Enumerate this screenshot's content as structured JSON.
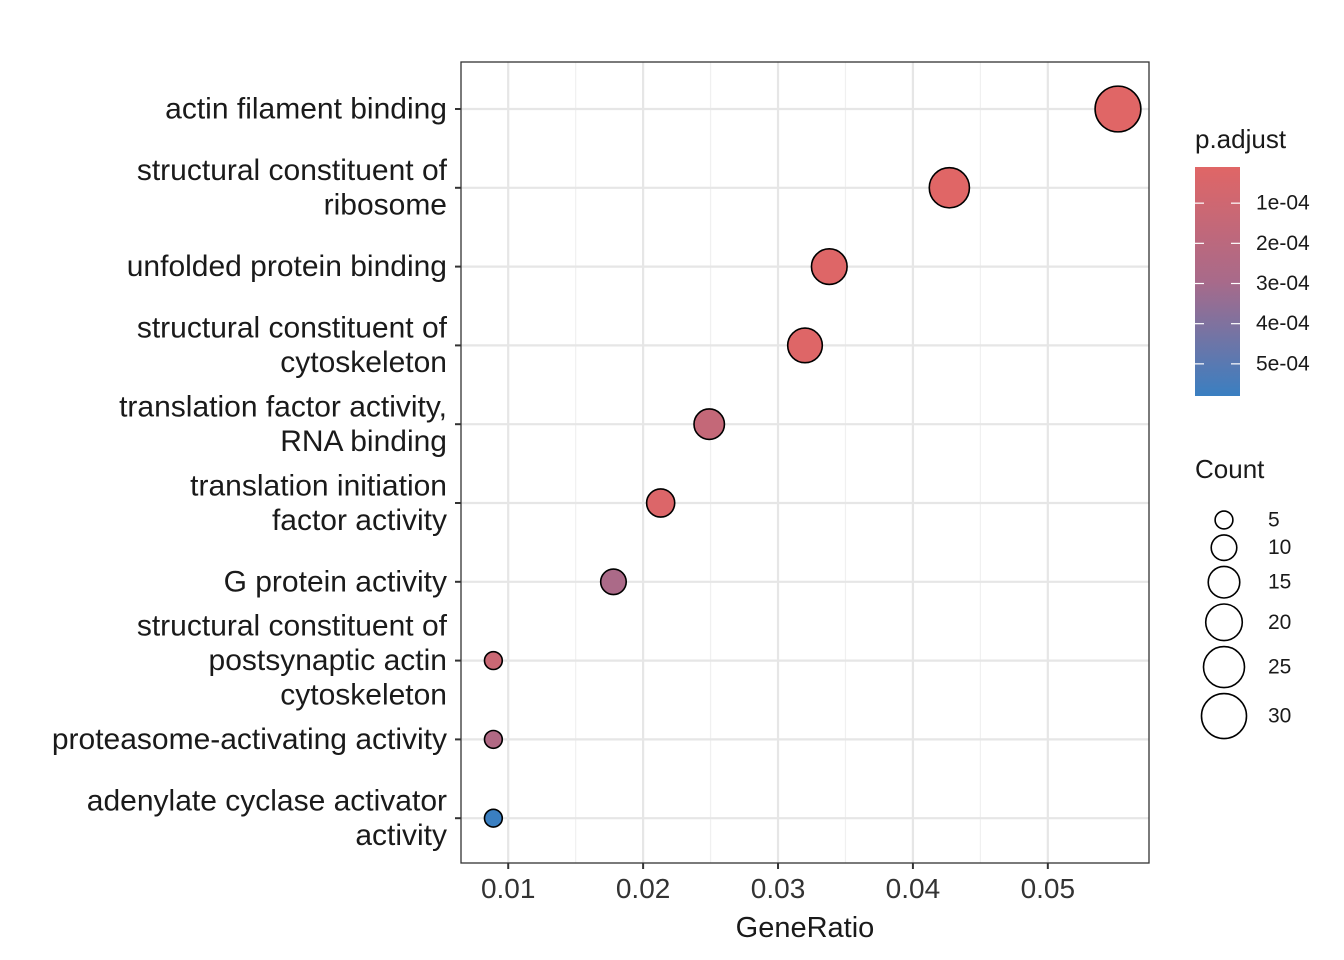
{
  "chart_data": {
    "type": "scatter",
    "xlabel": "GeneRatio",
    "ylabel": "",
    "xlim": [
      0.0065,
      0.0575
    ],
    "x_ticks": [
      0.01,
      0.02,
      0.03,
      0.04,
      0.05
    ],
    "x_tick_labels": [
      "0.01",
      "0.02",
      "0.03",
      "0.04",
      "0.05"
    ],
    "grid": true,
    "legend_position": "right",
    "points": [
      {
        "category": [
          "actin filament binding"
        ],
        "gene_ratio": 0.0552,
        "count": 31,
        "p_adjust": 1e-05
      },
      {
        "category": [
          "structural constituent of",
          "ribosome"
        ],
        "gene_ratio": 0.0427,
        "count": 24,
        "p_adjust": 1e-05
      },
      {
        "category": [
          "unfolded protein binding"
        ],
        "gene_ratio": 0.0338,
        "count": 19,
        "p_adjust": 2e-05
      },
      {
        "category": [
          "structural constituent of",
          "cytoskeleton"
        ],
        "gene_ratio": 0.032,
        "count": 18,
        "p_adjust": 2e-05
      },
      {
        "category": [
          "translation factor activity,",
          "RNA binding"
        ],
        "gene_ratio": 0.0249,
        "count": 14,
        "p_adjust": 0.00015
      },
      {
        "category": [
          "translation initiation",
          "factor activity"
        ],
        "gene_ratio": 0.0213,
        "count": 12,
        "p_adjust": 3e-05
      },
      {
        "category": [
          "G protein activity"
        ],
        "gene_ratio": 0.0178,
        "count": 10,
        "p_adjust": 0.00028
      },
      {
        "category": [
          "structural constituent of",
          "postsynaptic actin",
          "cytoskeleton"
        ],
        "gene_ratio": 0.0089,
        "count": 5,
        "p_adjust": 0.00012
      },
      {
        "category": [
          "proteasome-activating activity"
        ],
        "gene_ratio": 0.0089,
        "count": 5,
        "p_adjust": 0.00025
      },
      {
        "category": [
          "adenylate cyclase activator",
          "activity"
        ],
        "gene_ratio": 0.0089,
        "count": 5,
        "p_adjust": 0.00058
      }
    ],
    "color_legend": {
      "title": "p.adjust",
      "ticks": [
        0.0001,
        0.0002,
        0.0003,
        0.0004,
        0.0005
      ],
      "tick_labels": [
        "1e-04",
        "2e-04",
        "3e-04",
        "4e-04",
        "5e-04"
      ],
      "range": [
        1e-05,
        0.00058
      ],
      "low_color": "#e06666",
      "high_color": "#3a7fc1"
    },
    "size_legend": {
      "title": "Count",
      "values": [
        5,
        10,
        15,
        20,
        25,
        30
      ],
      "labels": [
        "5",
        "10",
        "15",
        "20",
        "25",
        "30"
      ]
    }
  }
}
